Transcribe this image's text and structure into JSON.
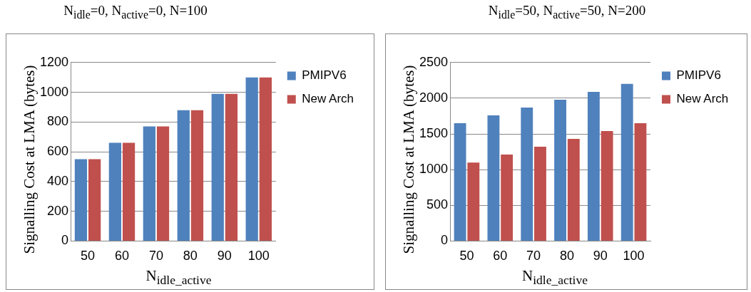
{
  "chart_data": [
    {
      "type": "bar",
      "title": "N$_{idle}$=0,  N$_{active}$=0, N=100",
      "xlabel": "N$_{idle_active}$",
      "ylabel": "Signalling Cost at LMA (bytes)",
      "categories": [
        "50",
        "60",
        "70",
        "80",
        "90",
        "100"
      ],
      "series": [
        {
          "name": "PMIPV6",
          "color": "#4f81bd",
          "values": [
            550,
            660,
            770,
            880,
            990,
            1100
          ]
        },
        {
          "name": "New Arch",
          "color": "#c0504d",
          "values": [
            550,
            660,
            770,
            880,
            990,
            1100
          ]
        }
      ],
      "ylim": [
        0,
        1200
      ],
      "yticks": [
        0,
        200,
        400,
        600,
        800,
        1000,
        1200
      ],
      "grid": "y",
      "legend": "right"
    },
    {
      "type": "bar",
      "title": "N$_{idle}$=50,  N$_{active}$=50, N=200",
      "xlabel": "N$_{idle_active}$",
      "ylabel": "Signalling Cost at LMA (bytes)",
      "categories": [
        "50",
        "60",
        "70",
        "80",
        "90",
        "100"
      ],
      "series": [
        {
          "name": "PMIPV6",
          "color": "#4f81bd",
          "values": [
            1650,
            1760,
            1870,
            1980,
            2090,
            2200
          ]
        },
        {
          "name": "New Arch",
          "color": "#c0504d",
          "values": [
            1100,
            1210,
            1320,
            1430,
            1540,
            1650
          ]
        }
      ],
      "ylim": [
        0,
        2500
      ],
      "yticks": [
        0,
        500,
        1000,
        1500,
        2000,
        2500
      ],
      "grid": "y",
      "legend": "right"
    }
  ]
}
